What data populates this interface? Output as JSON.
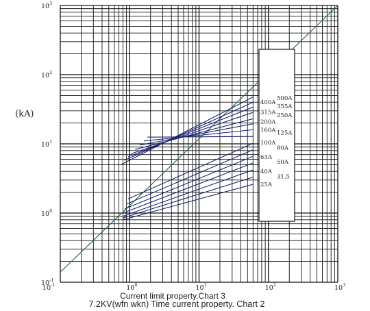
{
  "chart_data": {
    "type": "line",
    "xscale": "log",
    "yscale": "log",
    "xlim": [
      0.1,
      1000
    ],
    "ylim": [
      0.1,
      1000
    ],
    "xlabel": "",
    "ylabel": "(kA)",
    "grid": true,
    "x_ticks": [
      {
        "value": 0.1,
        "base": "10",
        "exp": "-1"
      },
      {
        "value": 1,
        "base": "10",
        "exp": "0"
      },
      {
        "value": 10,
        "base": "10",
        "exp": "1"
      },
      {
        "value": 100,
        "base": "10",
        "exp": "2"
      },
      {
        "value": 1000,
        "base": "10",
        "exp": "3"
      }
    ],
    "y_ticks": [
      {
        "value": 0.1,
        "base": "10",
        "exp": "-1"
      },
      {
        "value": 1,
        "base": "10",
        "exp": "0"
      },
      {
        "value": 10,
        "base": "10",
        "exp": "1"
      },
      {
        "value": 100,
        "base": "10",
        "exp": "2"
      },
      {
        "value": 1000,
        "base": "10",
        "exp": "3"
      }
    ],
    "reference_line": {
      "x": [
        0.1,
        1000
      ],
      "y": [
        0.14,
        1000
      ],
      "color": "#2e6b4e"
    },
    "series_color": "#1c2470",
    "series": [
      {
        "name": "500A",
        "x": [
          0.75,
          60
        ],
        "y": [
          5.0,
          47.5
        ]
      },
      {
        "name": "400A",
        "x": [
          0.85,
          60
        ],
        "y": [
          5.8,
          40.0
        ]
      },
      {
        "name": "355A",
        "x": [
          0.95,
          60
        ],
        "y": [
          6.5,
          34.0
        ]
      },
      {
        "name": "315A",
        "x": [
          1.05,
          60
        ],
        "y": [
          7.2,
          28.5
        ]
      },
      {
        "name": "250A",
        "x": [
          1.2,
          60
        ],
        "y": [
          8.3,
          23.0
        ]
      },
      {
        "name": "200A",
        "x": [
          1.4,
          60
        ],
        "y": [
          9.6,
          19.5
        ]
      },
      {
        "name": "160A",
        "x": [
          1.6,
          60
        ],
        "y": [
          11.0,
          16.0
        ]
      },
      {
        "name": "125A",
        "x": [
          1.8,
          60
        ],
        "y": [
          12.5,
          12.8
        ]
      },
      {
        "name": "100A",
        "x": [
          0.95,
          60
        ],
        "y": [
          1.6,
          10.2
        ]
      },
      {
        "name": "80A",
        "x": [
          0.9,
          60
        ],
        "y": [
          1.35,
          8.2
        ]
      },
      {
        "name": "63A",
        "x": [
          0.85,
          60
        ],
        "y": [
          1.15,
          6.6
        ]
      },
      {
        "name": "50A",
        "x": [
          0.8,
          60
        ],
        "y": [
          1.0,
          5.3
        ]
      },
      {
        "name": "40A",
        "x": [
          0.8,
          60
        ],
        "y": [
          0.9,
          4.2
        ]
      },
      {
        "name": "31.5",
        "x": [
          0.8,
          60
        ],
        "y": [
          0.85,
          3.3
        ]
      },
      {
        "name": "25A",
        "x": [
          0.8,
          60
        ],
        "y": [
          0.8,
          2.6
        ]
      }
    ],
    "labels_left": [
      {
        "text": "400A",
        "y": 40
      },
      {
        "text": "315A",
        "y": 29
      },
      {
        "text": "200A",
        "y": 21
      },
      {
        "text": "160A",
        "y": 16
      },
      {
        "text": "100A",
        "y": 10.5
      },
      {
        "text": "63A",
        "y": 6.5
      },
      {
        "text": "40A",
        "y": 4.0
      },
      {
        "text": "25A",
        "y": 2.6
      }
    ],
    "labels_right": [
      {
        "text": "500A",
        "y": 46
      },
      {
        "text": "355A",
        "y": 35
      },
      {
        "text": "250A",
        "y": 26
      },
      {
        "text": "125A",
        "y": 14.5
      },
      {
        "text": "80A",
        "y": 8.8
      },
      {
        "text": "50A",
        "y": 5.5
      },
      {
        "text": "31.5",
        "y": 3.4
      }
    ]
  },
  "captions": {
    "line1": "Current limit property.Chart 3",
    "line2": "7.2KV(wfn wkn) Time current property. Chart 2"
  }
}
